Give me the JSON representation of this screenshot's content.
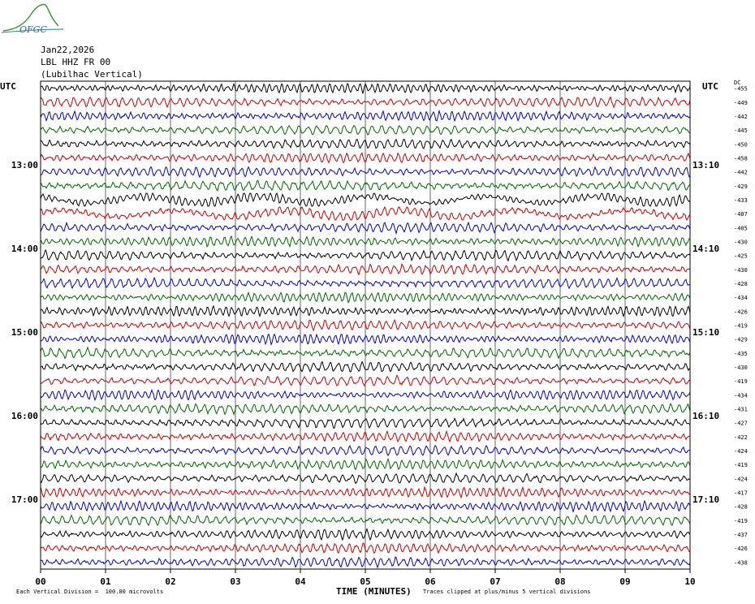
{
  "logo": {
    "text": "OFGC"
  },
  "header": {
    "date": "Jan22,2026",
    "station": "LBL HHZ FR 00",
    "location": "(Lubilhac Vertical)"
  },
  "footer": {
    "vertical_division": "Each Vertical Division =  100.00 microvolts",
    "clip_note": "Traces clipped at plus/minus 5 vertical divisions"
  },
  "chart_data": {
    "type": "line",
    "title": "",
    "xlabel": "TIME (MINUTES)",
    "xlim": [
      0,
      10
    ],
    "x_ticks": [
      "00",
      "01",
      "02",
      "03",
      "04",
      "05",
      "06",
      "07",
      "08",
      "09",
      "10"
    ],
    "left_axis_label": "UTC",
    "right_axis_label": "UTC",
    "right_column_label": "DC",
    "left_time_labels": [
      {
        "row": 6,
        "label": "13:00"
      },
      {
        "row": 12,
        "label": "14:00"
      },
      {
        "row": 18,
        "label": "15:00"
      },
      {
        "row": 24,
        "label": "16:00"
      },
      {
        "row": 30,
        "label": "17:00"
      }
    ],
    "right_time_labels": [
      {
        "row": 6,
        "label": "13:10"
      },
      {
        "row": 12,
        "label": "14:10"
      },
      {
        "row": 18,
        "label": "15:10"
      },
      {
        "row": 24,
        "label": "16:10"
      },
      {
        "row": 30,
        "label": "17:10"
      }
    ],
    "trace_colors": [
      "#000000",
      "#cc0000",
      "#0000cc",
      "#006600"
    ],
    "grid": true,
    "dc_offsets": [
      "-455",
      "-449",
      "-442",
      "-445",
      "-450",
      "-458",
      "-442",
      "-429",
      "-433",
      "-407",
      "-405",
      "-430",
      "-425",
      "-430",
      "-428",
      "-434",
      "-426",
      "-419",
      "-429",
      "-435",
      "-430",
      "-419",
      "-434",
      "-431",
      "-427",
      "-422",
      "-424",
      "-419",
      "-424",
      "-417",
      "-428",
      "-419",
      "-437",
      "-426",
      "-438"
    ]
  }
}
